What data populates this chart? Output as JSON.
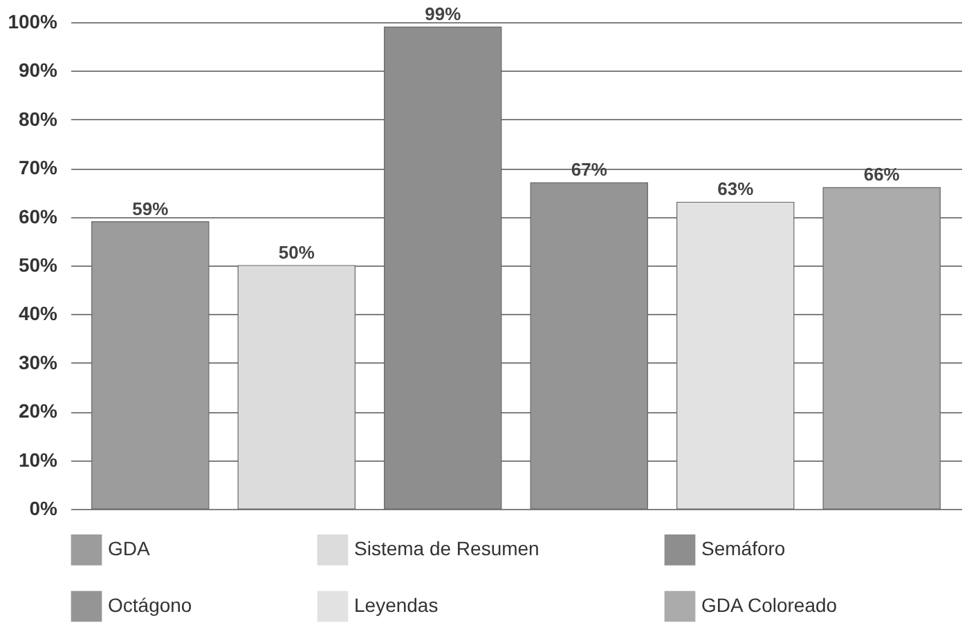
{
  "chart_data": {
    "type": "bar",
    "categories": [
      null
    ],
    "series": [
      {
        "name": "GDA",
        "color": "#9c9c9c",
        "values": [
          59
        ],
        "value_labels": [
          "59%"
        ]
      },
      {
        "name": "Sistema de Resumen",
        "color": "#dcdcdc",
        "values": [
          50
        ],
        "value_labels": [
          "50%"
        ]
      },
      {
        "name": "Semáforo",
        "color": "#8e8e8e",
        "values": [
          99
        ],
        "value_labels": [
          "99%"
        ]
      },
      {
        "name": "Octágono",
        "color": "#959595",
        "values": [
          67
        ],
        "value_labels": [
          "67%"
        ]
      },
      {
        "name": "Leyendas",
        "color": "#e2e2e2",
        "values": [
          63
        ],
        "value_labels": [
          "63%"
        ]
      },
      {
        "name": "GDA Coloreado",
        "color": "#ababab",
        "values": [
          66
        ],
        "value_labels": [
          "66%"
        ]
      }
    ],
    "ylim": [
      0,
      100
    ],
    "yticks": [
      {
        "value": 0,
        "label": "0%"
      },
      {
        "value": 10,
        "label": "10%"
      },
      {
        "value": 20,
        "label": "20%"
      },
      {
        "value": 30,
        "label": "30%"
      },
      {
        "value": 40,
        "label": "40%"
      },
      {
        "value": 50,
        "label": "50%"
      },
      {
        "value": 60,
        "label": "60%"
      },
      {
        "value": 70,
        "label": "70%"
      },
      {
        "value": 80,
        "label": "80%"
      },
      {
        "value": 90,
        "label": "90%"
      },
      {
        "value": 100,
        "label": "100%"
      }
    ],
    "grid": "y",
    "legend": "bottom",
    "tick_labels": "y"
  }
}
